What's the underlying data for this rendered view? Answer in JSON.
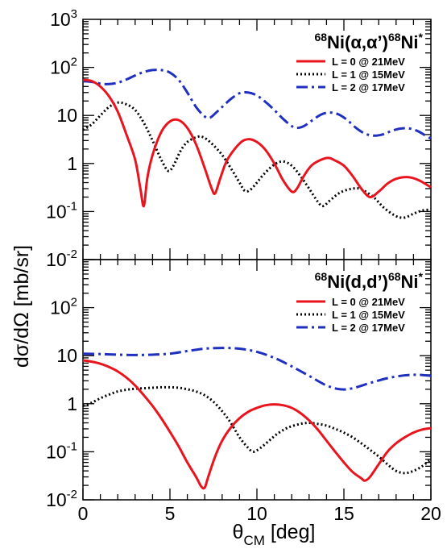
{
  "chart_data": {
    "type": "line",
    "x_label": "θ_CM [deg]",
    "y_label": "dσ/dΩ [mb/sr]",
    "x_range": [
      0,
      20
    ],
    "y_range": [
      0.01,
      1000
    ],
    "y_scale": "log",
    "x_ticks": [
      "0",
      "5",
      "10",
      "15",
      "20"
    ],
    "y_ticks_top": [
      "10^3",
      "10^2",
      "10",
      "1",
      "10^-1",
      "10^-2"
    ],
    "y_ticks_bottom": [
      "10^2",
      "10",
      "1",
      "10^-1",
      "10^-2"
    ],
    "legend_position": "top-right",
    "colors": {
      "L0": "#e8141e",
      "L1": "#000000",
      "L2": "#1f2fbf"
    },
    "panels": [
      {
        "id": "alpha",
        "title": {
          "sup1": "68",
          "main": "Ni(α,α’)",
          "sup2": "68",
          "main2": "Ni",
          "sup3": "*"
        },
        "series": [
          {
            "name": "L = 0 @ 21MeV",
            "points": [
              [
                0,
                55
              ],
              [
                0.5,
                52
              ],
              [
                1,
                40
              ],
              [
                1.5,
                25
              ],
              [
                2,
                12
              ],
              [
                2.5,
                4
              ],
              [
                3,
                1.2
              ],
              [
                3.3,
                0.3
              ],
              [
                3.5,
                0.13
              ],
              [
                3.7,
                0.5
              ],
              [
                4,
                1.5
              ],
              [
                4.5,
                4.5
              ],
              [
                5,
                7.5
              ],
              [
                5.5,
                8
              ],
              [
                6,
                5.5
              ],
              [
                6.5,
                2.5
              ],
              [
                7,
                0.8
              ],
              [
                7.4,
                0.3
              ],
              [
                7.6,
                0.24
              ],
              [
                7.9,
                0.5
              ],
              [
                8.3,
                1.2
              ],
              [
                9,
                2.6
              ],
              [
                9.5,
                3.2
              ],
              [
                10,
                2.8
              ],
              [
                10.5,
                1.9
              ],
              [
                11,
                1
              ],
              [
                11.5,
                0.45
              ],
              [
                12,
                0.26
              ],
              [
                12.3,
                0.3
              ],
              [
                12.7,
                0.55
              ],
              [
                13.2,
                0.95
              ],
              [
                14,
                1.3
              ],
              [
                14.5,
                1.15
              ],
              [
                15,
                0.9
              ],
              [
                15.5,
                0.55
              ],
              [
                16,
                0.3
              ],
              [
                16.5,
                0.2
              ],
              [
                17,
                0.26
              ],
              [
                17.5,
                0.38
              ],
              [
                18,
                0.48
              ],
              [
                18.7,
                0.52
              ],
              [
                19.3,
                0.45
              ],
              [
                20,
                0.32
              ]
            ]
          },
          {
            "name": "L = 1 @ 15MeV",
            "points": [
              [
                0,
                5
              ],
              [
                0.5,
                6.5
              ],
              [
                1,
                10
              ],
              [
                1.5,
                15
              ],
              [
                2,
                18.5
              ],
              [
                2.5,
                17
              ],
              [
                3,
                13
              ],
              [
                3.5,
                7
              ],
              [
                4,
                3
              ],
              [
                4.5,
                1.2
              ],
              [
                4.9,
                0.7
              ],
              [
                5.2,
                0.9
              ],
              [
                5.6,
                1.8
              ],
              [
                6,
                2.8
              ],
              [
                6.6,
                3.6
              ],
              [
                7,
                3.4
              ],
              [
                7.5,
                2.4
              ],
              [
                8,
                1.5
              ],
              [
                8.5,
                0.8
              ],
              [
                9,
                0.4
              ],
              [
                9.3,
                0.27
              ],
              [
                9.6,
                0.28
              ],
              [
                10,
                0.4
              ],
              [
                10.4,
                0.6
              ],
              [
                11,
                0.95
              ],
              [
                11.5,
                1.1
              ],
              [
                12,
                0.9
              ],
              [
                12.5,
                0.55
              ],
              [
                13,
                0.3
              ],
              [
                13.5,
                0.16
              ],
              [
                13.8,
                0.13
              ],
              [
                14.2,
                0.17
              ],
              [
                14.8,
                0.25
              ],
              [
                15.5,
                0.3
              ],
              [
                16,
                0.29
              ],
              [
                16.7,
                0.2
              ],
              [
                17.3,
                0.12
              ],
              [
                18,
                0.08
              ],
              [
                18.5,
                0.075
              ],
              [
                19,
                0.09
              ],
              [
                19.5,
                0.105
              ],
              [
                20,
                0.11
              ]
            ]
          },
          {
            "name": "L = 2 @ 17MeV",
            "points": [
              [
                0,
                52
              ],
              [
                0.5,
                50
              ],
              [
                1,
                46
              ],
              [
                1.5,
                45
              ],
              [
                2,
                48
              ],
              [
                2.5,
                56
              ],
              [
                3,
                68
              ],
              [
                3.5,
                80
              ],
              [
                4,
                88
              ],
              [
                4.5,
                88
              ],
              [
                5,
                78
              ],
              [
                5.5,
                55
              ],
              [
                6,
                30
              ],
              [
                6.5,
                15
              ],
              [
                7,
                9.5
              ],
              [
                7.3,
                9
              ],
              [
                7.6,
                11
              ],
              [
                8,
                15
              ],
              [
                8.5,
                22
              ],
              [
                9,
                29
              ],
              [
                9.5,
                30
              ],
              [
                10,
                26
              ],
              [
                10.5,
                19
              ],
              [
                11,
                13
              ],
              [
                11.5,
                8.5
              ],
              [
                12,
                6
              ],
              [
                12.3,
                5.5
              ],
              [
                12.7,
                6
              ],
              [
                13.2,
                8
              ],
              [
                13.7,
                10.5
              ],
              [
                14.2,
                11.5
              ],
              [
                14.7,
                10.5
              ],
              [
                15.2,
                8
              ],
              [
                15.7,
                5.5
              ],
              [
                16.2,
                4.2
              ],
              [
                16.7,
                3.8
              ],
              [
                17.2,
                4
              ],
              [
                17.7,
                4.7
              ],
              [
                18.2,
                5.3
              ],
              [
                18.7,
                5.4
              ],
              [
                19.2,
                4.8
              ],
              [
                19.6,
                4
              ],
              [
                20,
                3.3
              ]
            ]
          }
        ]
      },
      {
        "id": "deuteron",
        "title": {
          "sup1": "68",
          "main": "Ni(d,d’)",
          "sup2": "68",
          "main2": "Ni",
          "sup3": "*"
        },
        "series": [
          {
            "name": "L = 0 @ 21MeV",
            "points": [
              [
                0,
                8
              ],
              [
                0.5,
                7.5
              ],
              [
                1,
                6.8
              ],
              [
                1.5,
                5.8
              ],
              [
                2,
                4.7
              ],
              [
                2.5,
                3.5
              ],
              [
                3,
                2.4
              ],
              [
                3.5,
                1.5
              ],
              [
                4,
                0.9
              ],
              [
                4.5,
                0.5
              ],
              [
                5,
                0.26
              ],
              [
                5.5,
                0.13
              ],
              [
                6,
                0.06
              ],
              [
                6.5,
                0.03
              ],
              [
                6.8,
                0.019
              ],
              [
                7,
                0.018
              ],
              [
                7.2,
                0.03
              ],
              [
                7.6,
                0.08
              ],
              [
                8,
                0.17
              ],
              [
                8.5,
                0.32
              ],
              [
                9,
                0.5
              ],
              [
                9.5,
                0.68
              ],
              [
                10,
                0.82
              ],
              [
                10.5,
                0.93
              ],
              [
                11,
                0.97
              ],
              [
                11.5,
                0.93
              ],
              [
                12,
                0.82
              ],
              [
                12.5,
                0.64
              ],
              [
                13,
                0.45
              ],
              [
                13.5,
                0.29
              ],
              [
                14,
                0.17
              ],
              [
                14.5,
                0.1
              ],
              [
                15,
                0.06
              ],
              [
                15.5,
                0.038
              ],
              [
                16,
                0.028
              ],
              [
                16.2,
                0.025
              ],
              [
                16.5,
                0.03
              ],
              [
                17,
                0.055
              ],
              [
                17.5,
                0.1
              ],
              [
                18,
                0.15
              ],
              [
                18.5,
                0.2
              ],
              [
                19,
                0.25
              ],
              [
                19.5,
                0.29
              ],
              [
                20,
                0.31
              ]
            ]
          },
          {
            "name": "L = 1 @ 15MeV",
            "points": [
              [
                0,
                0.9
              ],
              [
                0.5,
                1.05
              ],
              [
                1,
                1.3
              ],
              [
                1.5,
                1.55
              ],
              [
                2,
                1.8
              ],
              [
                2.5,
                1.95
              ],
              [
                3,
                2.05
              ],
              [
                3.5,
                2.1
              ],
              [
                4,
                2.15
              ],
              [
                4.5,
                2.2
              ],
              [
                5,
                2.2
              ],
              [
                5.5,
                2.15
              ],
              [
                6,
                2
              ],
              [
                6.5,
                1.8
              ],
              [
                7,
                1.5
              ],
              [
                7.5,
                1.1
              ],
              [
                8,
                0.7
              ],
              [
                8.5,
                0.4
              ],
              [
                9,
                0.2
              ],
              [
                9.5,
                0.12
              ],
              [
                9.8,
                0.1
              ],
              [
                10.2,
                0.12
              ],
              [
                10.7,
                0.17
              ],
              [
                11.2,
                0.24
              ],
              [
                11.8,
                0.32
              ],
              [
                12.5,
                0.38
              ],
              [
                13,
                0.4
              ],
              [
                13.5,
                0.38
              ],
              [
                14,
                0.35
              ],
              [
                14.5,
                0.3
              ],
              [
                15,
                0.25
              ],
              [
                15.5,
                0.2
              ],
              [
                16,
                0.15
              ],
              [
                16.5,
                0.11
              ],
              [
                17,
                0.08
              ],
              [
                17.5,
                0.055
              ],
              [
                18,
                0.04
              ],
              [
                18.5,
                0.036
              ],
              [
                19,
                0.04
              ],
              [
                19.5,
                0.05
              ],
              [
                20,
                0.07
              ]
            ]
          },
          {
            "name": "L = 2 @ 17MeV",
            "points": [
              [
                0,
                11
              ],
              [
                1,
                10.8
              ],
              [
                2,
                10.5
              ],
              [
                3,
                10.3
              ],
              [
                4,
                10.5
              ],
              [
                5,
                11
              ],
              [
                6,
                12.5
              ],
              [
                7,
                14
              ],
              [
                8,
                14.5
              ],
              [
                9,
                14
              ],
              [
                10,
                12
              ],
              [
                11,
                9
              ],
              [
                12,
                6
              ],
              [
                13,
                3.8
              ],
              [
                14,
                2.4
              ],
              [
                14.8,
                2
              ],
              [
                15.5,
                2.1
              ],
              [
                16.5,
                2.7
              ],
              [
                17.5,
                3.4
              ],
              [
                18.5,
                3.9
              ],
              [
                19.3,
                4
              ],
              [
                20,
                3.8
              ]
            ]
          }
        ]
      }
    ]
  }
}
